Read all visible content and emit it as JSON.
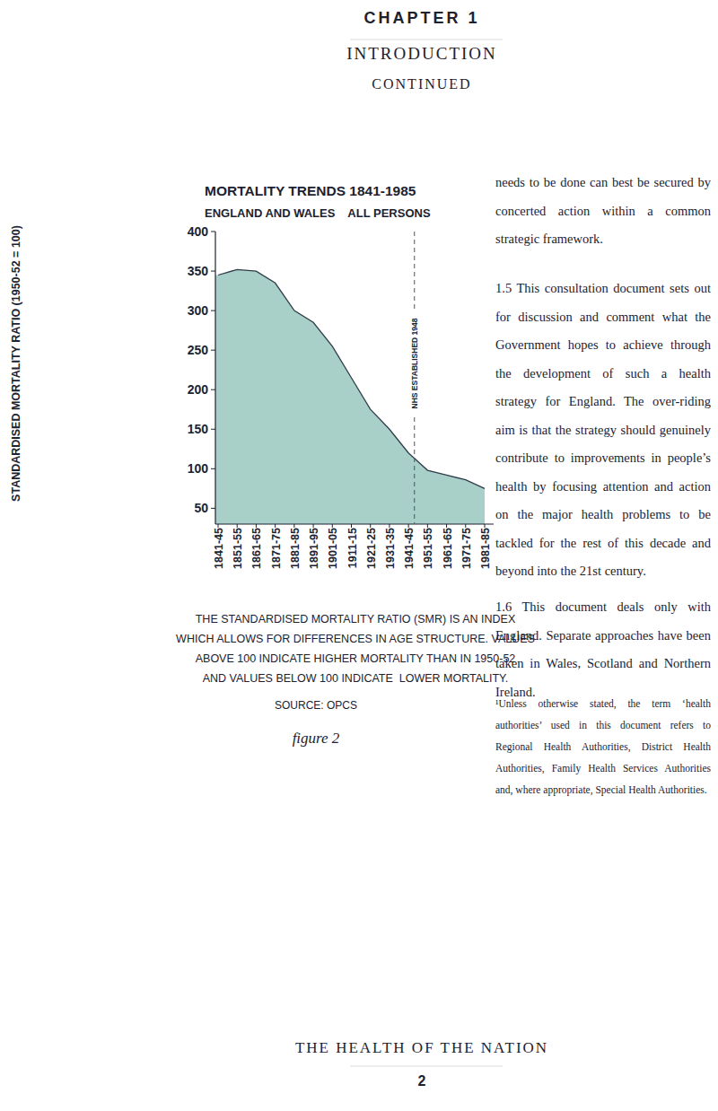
{
  "header": {
    "chapter": "CHAPTER 1",
    "section": "INTRODUCTION",
    "continued": "CONTINUED"
  },
  "chart_data": {
    "type": "area",
    "title": "MORTALITY TRENDS 1841-1985",
    "subtitle": "ENGLAND AND WALES    ALL PERSONS",
    "y_label": "STANDARDISED MORTALITY RATIO (1950-52 = 100)",
    "categories": [
      "1841-45",
      "1851-55",
      "1861-65",
      "1871-75",
      "1881-85",
      "1891-95",
      "1901-05",
      "1911-15",
      "1921-25",
      "1931-35",
      "1941-45",
      "1951-55",
      "1961-65",
      "1971-75",
      "1981-85"
    ],
    "values": [
      345,
      352,
      350,
      335,
      300,
      285,
      255,
      215,
      175,
      150,
      120,
      98,
      92,
      86,
      75
    ],
    "color": "#a8cfc8",
    "ylim": [
      30,
      400
    ],
    "yticks": [
      50,
      100,
      150,
      200,
      250,
      300,
      350,
      400
    ],
    "annotations": [
      "NHS ESTABLISHED 1948"
    ],
    "notes": [
      "THE STANDARDISED MORTALITY RATIO (SMR) IS AN INDEX",
      "WHICH ALLOWS FOR DIFFERENCES IN AGE STRUCTURE. VALUES",
      "ABOVE 100 INDICATE HIGHER MORTALITY THAN IN 1950-52",
      "AND VALUES BELOW 100 INDICATE  LOWER MORTALITY."
    ],
    "source": "SOURCE: OPCS",
    "figure": "figure 2"
  },
  "body": {
    "paragraphs": [
      "needs to be done can best be secured by concerted action within a common strategic framework.",
      "1.5 This consultation document sets out for discussion and comment what the Government hopes to achieve through the development of such a health strategy for England. The over-riding aim is that the strategy should genuinely contribute to improvements in people’s health by focusing attention and action on the major health problems to be tackled for the rest of this decade and beyond into the 21st century.",
      "1.6 This document deals only with England. Separate approaches have been taken in Wales, Scotland and Northern Ireland."
    ],
    "footnote": "¹Unless otherwise stated, the term ‘health authorities’ used in this document refers to Regional Health Authorities, District Health Authorities, Family Health Services Authorities and, where appropriate, Special Health Authorities."
  },
  "footer": {
    "title": "THE HEALTH OF THE NATION",
    "page": "2"
  }
}
